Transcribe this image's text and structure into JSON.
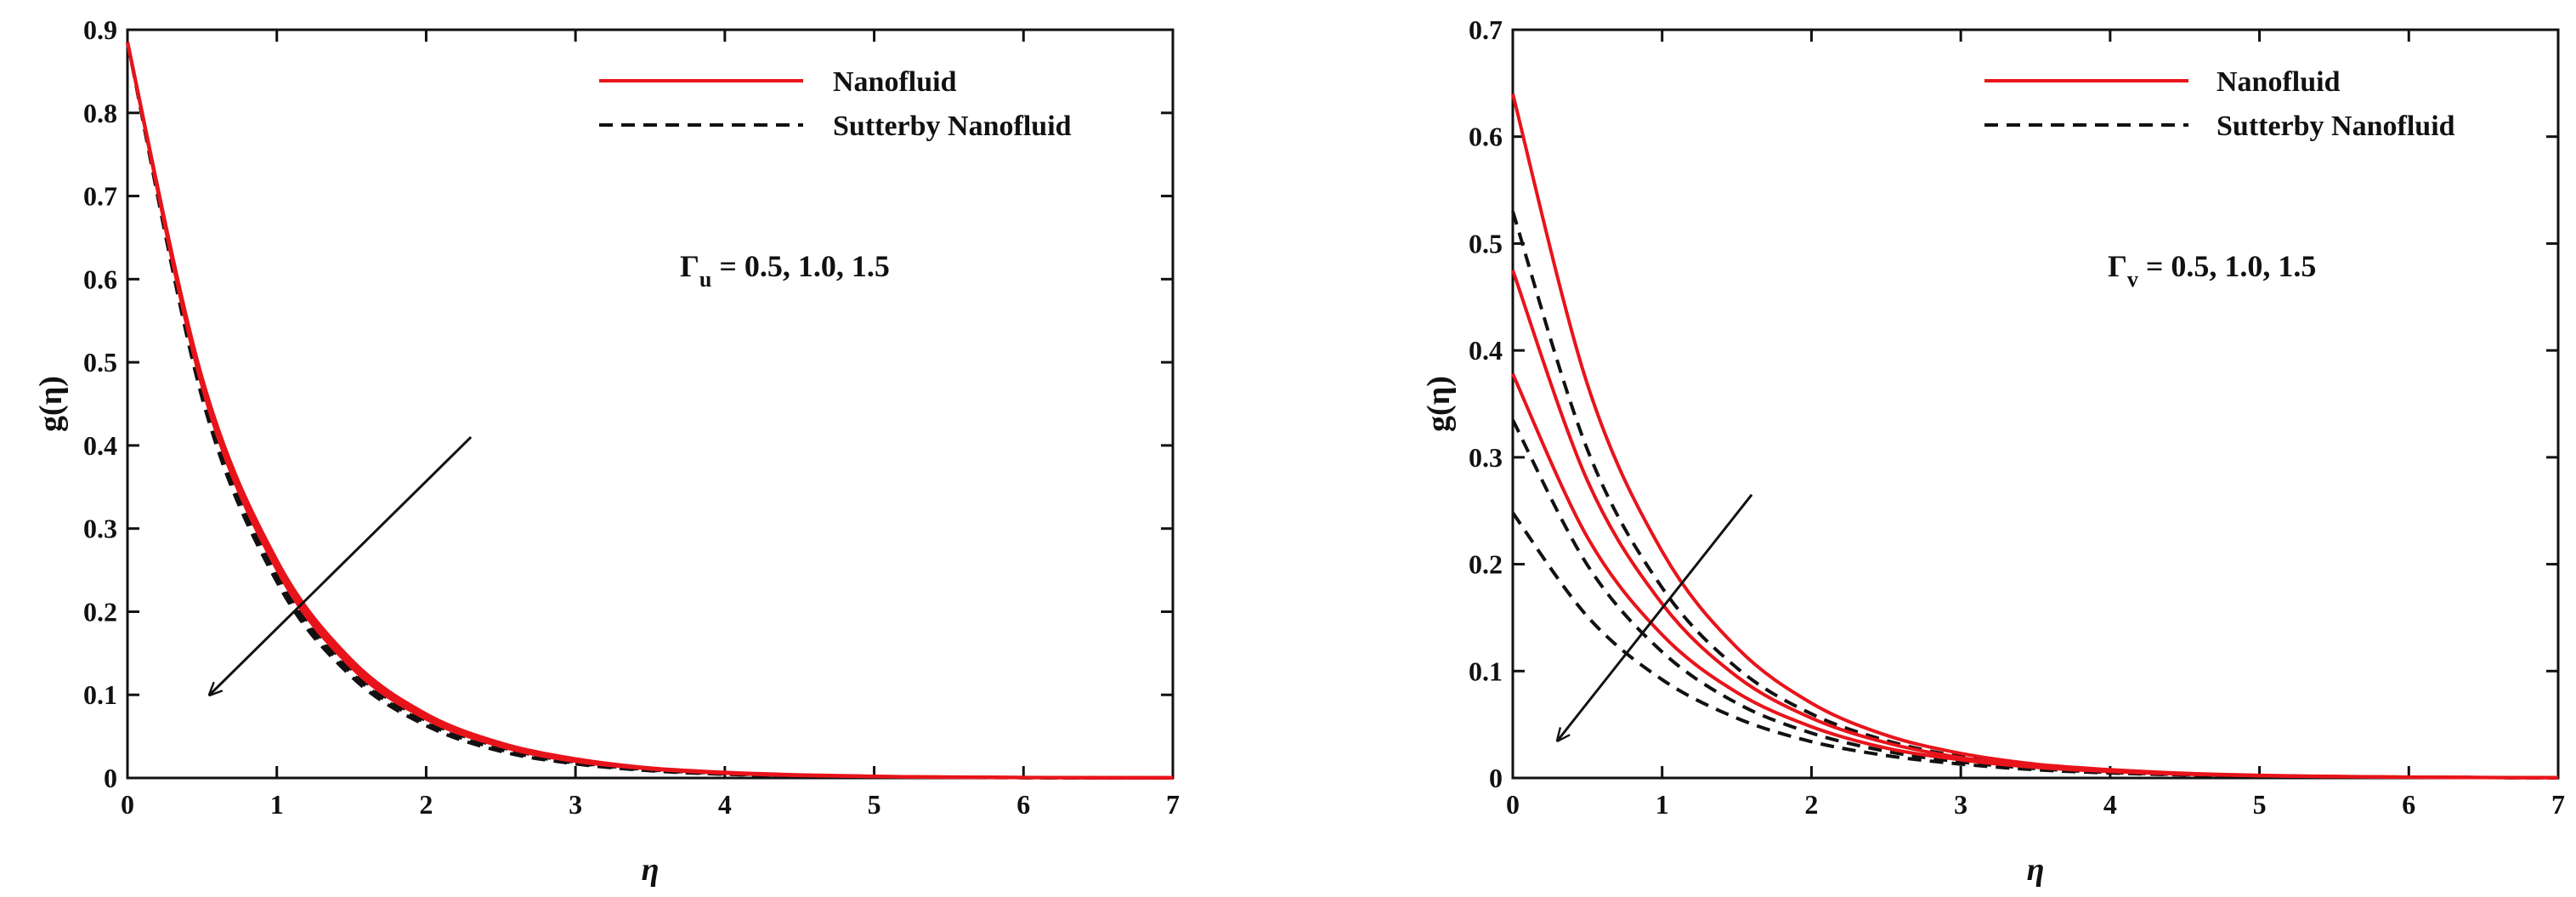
{
  "chart_data": [
    {
      "type": "line",
      "xlabel": "η",
      "ylabel": "g(η)",
      "xlim": [
        0,
        7
      ],
      "ylim": [
        0,
        0.9
      ],
      "x_ticks": [
        "0",
        "1",
        "2",
        "3",
        "4",
        "5",
        "6",
        "7"
      ],
      "y_ticks": [
        "0",
        "0.1",
        "0.2",
        "0.3",
        "0.4",
        "0.5",
        "0.6",
        "0.7",
        "0.8",
        "0.9"
      ],
      "legend": [
        "Nanofluid",
        "Sutterby Nanofluid"
      ],
      "legend_position": "top-right",
      "annotation": {
        "symbol": "Γ",
        "subscript": "u",
        "text": " = 0.5, 1.0, 1.5"
      },
      "arrow": {
        "from": [
          2.3,
          0.41
        ],
        "to": [
          0.55,
          0.1
        ]
      },
      "colors": {
        "nanofluid": "#e8141b",
        "sutterby": "#111111"
      },
      "series": [
        {
          "name": "Nanofluid, Γu = 0.5",
          "group": "Nanofluid",
          "x": [
            0,
            0.5,
            1,
            1.5,
            2,
            2.5,
            3,
            3.5,
            4,
            4.5,
            5,
            5.5,
            6,
            6.5,
            7
          ],
          "values": [
            0.885,
            0.481,
            0.262,
            0.142,
            0.077,
            0.042,
            0.023,
            0.012,
            0.0068,
            0.0037,
            0.002,
            0.0011,
            0.0006,
            0.0003,
            0.0002
          ]
        },
        {
          "name": "Nanofluid, Γu = 1.0",
          "group": "Nanofluid",
          "x": [
            0,
            0.5,
            1,
            1.5,
            2,
            2.5,
            3,
            3.5,
            4,
            4.5,
            5,
            5.5,
            6,
            6.5,
            7
          ],
          "values": [
            0.885,
            0.476,
            0.256,
            0.138,
            0.074,
            0.04,
            0.021,
            0.011,
            0.0062,
            0.0033,
            0.0018,
            0.001,
            0.0005,
            0.0003,
            0.0002
          ]
        },
        {
          "name": "Nanofluid, Γu = 1.5",
          "group": "Nanofluid",
          "x": [
            0,
            0.5,
            1,
            1.5,
            2,
            2.5,
            3,
            3.5,
            4,
            4.5,
            5,
            5.5,
            6,
            6.5,
            7
          ],
          "values": [
            0.885,
            0.471,
            0.251,
            0.133,
            0.071,
            0.038,
            0.02,
            0.011,
            0.0057,
            0.003,
            0.0016,
            0.0009,
            0.0005,
            0.0003,
            0.0001
          ]
        },
        {
          "name": "Sutterby Nanofluid, Γu = 0.5",
          "group": "Sutterby Nanofluid",
          "x": [
            0,
            0.5,
            1,
            1.5,
            2,
            2.5,
            3,
            3.5,
            4,
            4.5,
            5,
            5.5,
            6,
            6.5,
            7
          ],
          "values": [
            0.885,
            0.468,
            0.247,
            0.131,
            0.069,
            0.037,
            0.019,
            0.01,
            0.0054,
            0.0029,
            0.0015,
            0.0008,
            0.0004,
            0.0002,
            0.0001
          ]
        },
        {
          "name": "Sutterby Nanofluid, Γu = 1.0",
          "group": "Sutterby Nanofluid",
          "x": [
            0,
            0.5,
            1,
            1.5,
            2,
            2.5,
            3,
            3.5,
            4,
            4.5,
            5,
            5.5,
            6,
            6.5,
            7
          ],
          "values": [
            0.885,
            0.462,
            0.241,
            0.126,
            0.066,
            0.034,
            0.018,
            0.0094,
            0.0049,
            0.0026,
            0.0013,
            0.0007,
            0.0004,
            0.0002,
            0.0001
          ]
        },
        {
          "name": "Sutterby Nanofluid, Γu = 1.5",
          "group": "Sutterby Nanofluid",
          "x": [
            0,
            0.5,
            1,
            1.5,
            2,
            2.5,
            3,
            3.5,
            4,
            4.5,
            5,
            5.5,
            6,
            6.5,
            7
          ],
          "values": [
            0.885,
            0.457,
            0.236,
            0.122,
            0.063,
            0.032,
            0.017,
            0.0087,
            0.0045,
            0.0023,
            0.0012,
            0.0006,
            0.0003,
            0.0002,
            0.0001
          ]
        }
      ]
    },
    {
      "type": "line",
      "xlabel": "η",
      "ylabel": "g(η)",
      "xlim": [
        0,
        7
      ],
      "ylim": [
        0,
        0.7
      ],
      "x_ticks": [
        "0",
        "1",
        "2",
        "3",
        "4",
        "5",
        "6",
        "7"
      ],
      "y_ticks": [
        "0",
        "0.1",
        "0.2",
        "0.3",
        "0.4",
        "0.5",
        "0.6",
        "0.7"
      ],
      "legend": [
        "Nanofluid",
        "Sutterby Nanofluid"
      ],
      "legend_position": "top-right",
      "annotation": {
        "symbol": "Γ",
        "subscript": "v",
        "text": " = 0.5, 1.0, 1.5"
      },
      "arrow": {
        "from": [
          1.6,
          0.265
        ],
        "to": [
          0.3,
          0.035
        ]
      },
      "colors": {
        "nanofluid": "#e8141b",
        "sutterby": "#111111"
      },
      "series": [
        {
          "name": "Nanofluid, Γv = 0.5",
          "group": "Nanofluid",
          "x": [
            0,
            0.5,
            1,
            1.5,
            2,
            2.5,
            3,
            3.5,
            4,
            4.5,
            5,
            5.5,
            6,
            6.5,
            7
          ],
          "values": [
            0.64,
            0.368,
            0.212,
            0.122,
            0.07,
            0.04,
            0.023,
            0.013,
            0.0077,
            0.0044,
            0.0025,
            0.0015,
            0.0008,
            0.0005,
            0.0003
          ]
        },
        {
          "name": "Nanofluid, Γv = 1.0",
          "group": "Nanofluid",
          "x": [
            0,
            0.5,
            1,
            1.5,
            2,
            2.5,
            3,
            3.5,
            4,
            4.5,
            5,
            5.5,
            6,
            6.5,
            7
          ],
          "values": [
            0.475,
            0.278,
            0.163,
            0.095,
            0.056,
            0.033,
            0.019,
            0.011,
            0.0065,
            0.0038,
            0.0022,
            0.0013,
            0.0008,
            0.0004,
            0.0003
          ]
        },
        {
          "name": "Nanofluid, Γv = 1.5",
          "group": "Nanofluid",
          "x": [
            0,
            0.5,
            1,
            1.5,
            2,
            2.5,
            3,
            3.5,
            4,
            4.5,
            5,
            5.5,
            6,
            6.5,
            7
          ],
          "values": [
            0.378,
            0.225,
            0.134,
            0.08,
            0.048,
            0.028,
            0.017,
            0.01,
            0.006,
            0.0035,
            0.0021,
            0.0013,
            0.0007,
            0.0004,
            0.0003
          ]
        },
        {
          "name": "Sutterby Nanofluid, Γv = 0.5",
          "group": "Sutterby Nanofluid",
          "x": [
            0,
            0.5,
            1,
            1.5,
            2,
            2.5,
            3,
            3.5,
            4,
            4.5,
            5,
            5.5,
            6,
            6.5,
            7
          ],
          "values": [
            0.53,
            0.307,
            0.178,
            0.103,
            0.06,
            0.035,
            0.02,
            0.012,
            0.0067,
            0.0039,
            0.0022,
            0.0013,
            0.0008,
            0.0004,
            0.0003
          ]
        },
        {
          "name": "Sutterby Nanofluid, Γv = 1.0",
          "group": "Sutterby Nanofluid",
          "x": [
            0,
            0.5,
            1,
            1.5,
            2,
            2.5,
            3,
            3.5,
            4,
            4.5,
            5,
            5.5,
            6,
            6.5,
            7
          ],
          "values": [
            0.335,
            0.199,
            0.118,
            0.07,
            0.042,
            0.025,
            0.015,
            0.0088,
            0.0052,
            0.0031,
            0.0018,
            0.0011,
            0.0006,
            0.0004,
            0.0002
          ]
        },
        {
          "name": "Sutterby Nanofluid, Γv = 1.5",
          "group": "Sutterby Nanofluid",
          "x": [
            0,
            0.5,
            1,
            1.5,
            2,
            2.5,
            3,
            3.5,
            4,
            4.5,
            5,
            5.5,
            6,
            6.5,
            7
          ],
          "values": [
            0.248,
            0.151,
            0.092,
            0.056,
            0.034,
            0.021,
            0.013,
            0.0077,
            0.0047,
            0.0028,
            0.0017,
            0.0011,
            0.0006,
            0.0004,
            0.0002
          ]
        }
      ]
    }
  ]
}
